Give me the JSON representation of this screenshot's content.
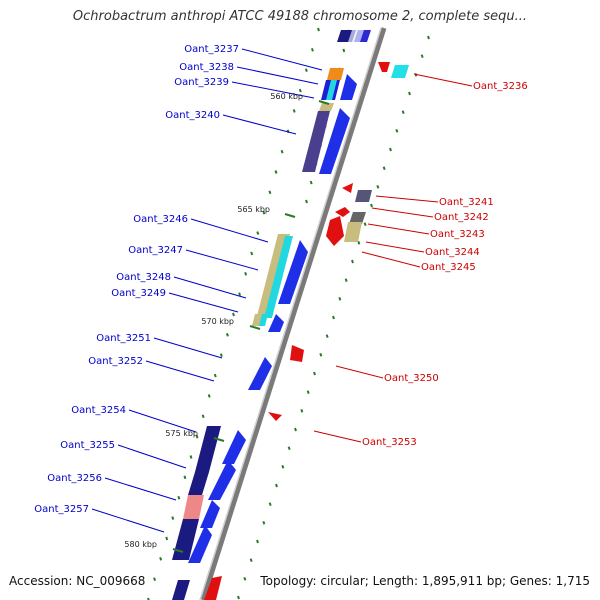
{
  "title": "Ochrobactrum anthropi ATCC 49188 chromosome 2, complete sequ...",
  "footer": {
    "accession": "Accession: NC_009668",
    "summary": "Topology: circular; Length: 1,895,911 bp; Genes: 1,715"
  },
  "colors": {
    "forward_label": "#0000cc",
    "reverse_label": "#cc0000",
    "backbone": "#888888",
    "tick": "#2a7a2a"
  },
  "ticks": [
    "560 kbp",
    "565 kbp",
    "570 kbp",
    "575 kbp",
    "580 kbp"
  ],
  "genes_forward": [
    "Oant_3237",
    "Oant_3238",
    "Oant_3239",
    "Oant_3240",
    "Oant_3246",
    "Oant_3247",
    "Oant_3248",
    "Oant_3249",
    "Oant_3251",
    "Oant_3252",
    "Oant_3254",
    "Oant_3255",
    "Oant_3256",
    "Oant_3257"
  ],
  "genes_reverse": [
    "Oant_3236",
    "Oant_3241",
    "Oant_3242",
    "Oant_3243",
    "Oant_3244",
    "Oant_3245",
    "Oant_3250",
    "Oant_3253"
  ]
}
